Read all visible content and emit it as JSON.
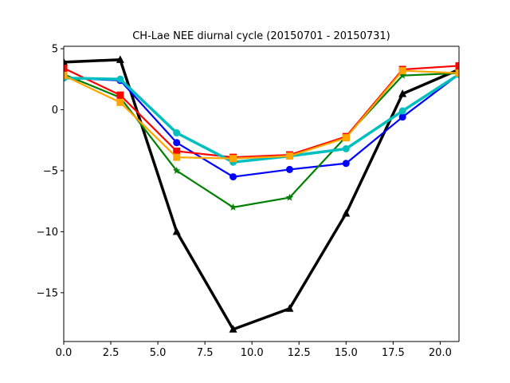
{
  "chart_data": {
    "type": "line",
    "title": "CH-Lae NEE diurnal cycle (20150701 - 20150731)",
    "xlabel": "",
    "ylabel": "",
    "xlim": [
      0,
      21
    ],
    "ylim": [
      -19,
      5.2
    ],
    "grid": false,
    "x": [
      0,
      3,
      6,
      9,
      12,
      15,
      18,
      21
    ],
    "x_ticks": [
      0.0,
      2.5,
      5.0,
      7.5,
      10.0,
      12.5,
      15.0,
      17.5,
      20.0
    ],
    "x_tick_labels": [
      "0.0",
      "2.5",
      "5.0",
      "7.5",
      "10.0",
      "12.5",
      "15.0",
      "17.5",
      "20.0"
    ],
    "y_ticks": [
      5,
      0,
      -5,
      -10,
      -15
    ],
    "y_tick_labels": [
      "5",
      "0",
      "−5",
      "−10",
      "−15"
    ],
    "series": [
      {
        "color": "#000000",
        "marker": "triangle",
        "line_width": 3.5,
        "values": [
          3.9,
          4.1,
          -10.0,
          -18.0,
          -16.3,
          -8.5,
          1.3,
          3.3
        ]
      },
      {
        "color": "#0000ff",
        "marker": "circle",
        "line_width": 2.2,
        "values": [
          2.6,
          2.4,
          -2.7,
          -5.5,
          -4.9,
          -4.4,
          -0.6,
          2.9
        ]
      },
      {
        "color": "#008000",
        "marker": "star",
        "line_width": 2.2,
        "values": [
          2.9,
          1.0,
          -5.0,
          -8.0,
          -7.2,
          -2.2,
          2.8,
          3.0
        ]
      },
      {
        "color": "#ff0000",
        "marker": "square",
        "line_width": 2.2,
        "values": [
          3.4,
          1.2,
          -3.4,
          -3.9,
          -3.7,
          -2.2,
          3.3,
          3.6
        ]
      },
      {
        "color": "#00bfbf",
        "marker": "circle",
        "line_width": 3.5,
        "values": [
          2.6,
          2.5,
          -1.9,
          -4.3,
          -3.8,
          -3.2,
          -0.1,
          2.9
        ]
      },
      {
        "color": "#ffa500",
        "marker": "square",
        "line_width": 2.2,
        "values": [
          2.8,
          0.6,
          -3.9,
          -4.0,
          -3.8,
          -2.3,
          3.2,
          3.0
        ]
      }
    ]
  }
}
